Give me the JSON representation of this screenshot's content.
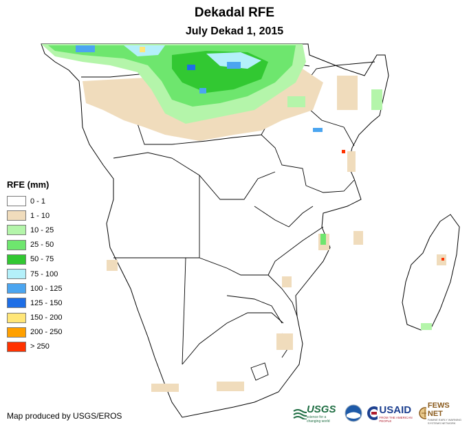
{
  "header": {
    "title": "Dekadal RFE",
    "subtitle": "July Dekad 1, 2015"
  },
  "legend": {
    "title": "RFE (mm)",
    "items": [
      {
        "label": "0 - 1",
        "color": "#ffffff"
      },
      {
        "label": "1 - 10",
        "color": "#f0dcbc"
      },
      {
        "label": "10 - 25",
        "color": "#b4f5aa"
      },
      {
        "label": "25 - 50",
        "color": "#6ee66e"
      },
      {
        "label": "50 - 75",
        "color": "#32c832"
      },
      {
        "label": "75 - 100",
        "color": "#b4f0fa"
      },
      {
        "label": "100 - 125",
        "color": "#4ba5f0"
      },
      {
        "label": "125 - 150",
        "color": "#1e6ee6"
      },
      {
        "label": "150 - 200",
        "color": "#ffe678"
      },
      {
        "label": "200 - 250",
        "color": "#ffa000"
      },
      {
        "label": "> 250",
        "color": "#ff3200"
      }
    ]
  },
  "footer": {
    "credit": "Map produced by USGS/EROS",
    "logos": {
      "usgs": "USGS",
      "usgs_tagline": "science for a changing world",
      "noaa": "NOAA",
      "usaid": "USAID",
      "usaid_tagline": "FROM THE AMERICAN PEOPLE",
      "fews": "FEWS NET",
      "fews_tagline": "FAMINE EARLY WARNING SYSTEMS NETWORK"
    }
  }
}
